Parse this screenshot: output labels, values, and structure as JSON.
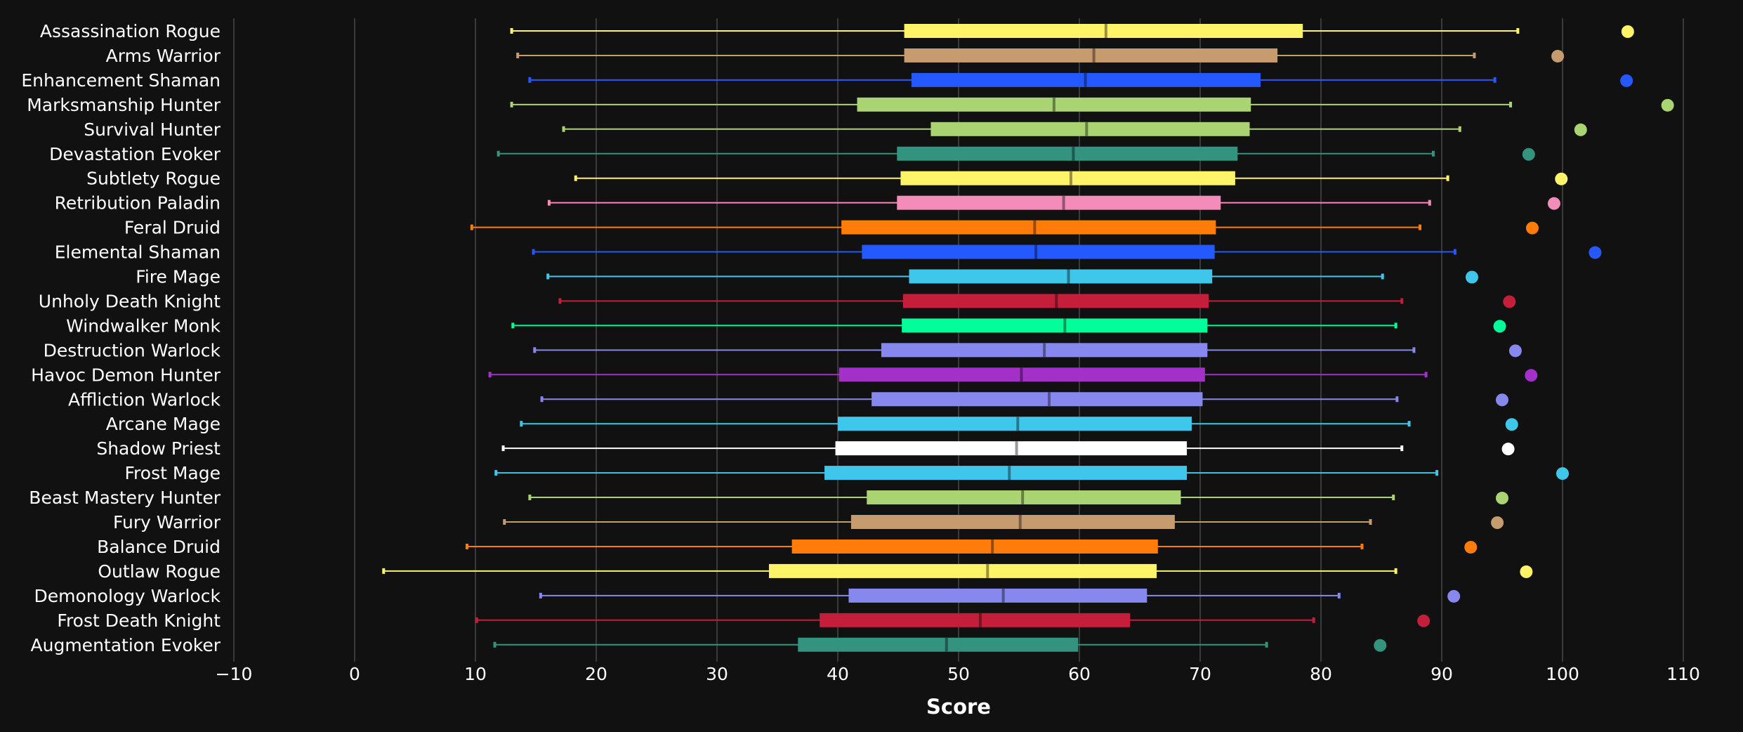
{
  "chart_data": {
    "type": "boxplot",
    "title": "",
    "xlabel": "Score",
    "ylabel": "",
    "xlim": [
      -10,
      110
    ],
    "xticks": [
      -10,
      0,
      10,
      20,
      30,
      40,
      50,
      60,
      70,
      80,
      90,
      100,
      110
    ],
    "grid": true,
    "series": [
      {
        "name": "Assassination Rogue",
        "color": "#FFF468",
        "min": 13.0,
        "q1": 45.5,
        "median": 62.2,
        "q3": 78.5,
        "max": 96.3,
        "outlier": 105.4
      },
      {
        "name": "Arms Warrior",
        "color": "#C69B6D",
        "min": 13.5,
        "q1": 45.5,
        "median": 61.2,
        "q3": 76.4,
        "max": 92.7,
        "outlier": 99.6
      },
      {
        "name": "Enhancement Shaman",
        "color": "#2459FF",
        "min": 14.5,
        "q1": 46.1,
        "median": 60.5,
        "q3": 75.0,
        "max": 94.4,
        "outlier": 105.3
      },
      {
        "name": "Marksmanship Hunter",
        "color": "#AAD372",
        "min": 13.0,
        "q1": 41.6,
        "median": 57.9,
        "q3": 74.2,
        "max": 95.7,
        "outlier": 108.7
      },
      {
        "name": "Survival Hunter",
        "color": "#AAD372",
        "min": 17.3,
        "q1": 47.7,
        "median": 60.6,
        "q3": 74.1,
        "max": 91.5,
        "outlier": 101.5
      },
      {
        "name": "Devastation Evoker",
        "color": "#33937F",
        "min": 11.9,
        "q1": 44.9,
        "median": 59.5,
        "q3": 73.1,
        "max": 89.3,
        "outlier": 97.2
      },
      {
        "name": "Subtlety Rogue",
        "color": "#FFF468",
        "min": 18.3,
        "q1": 45.2,
        "median": 59.3,
        "q3": 72.9,
        "max": 90.5,
        "outlier": 99.9
      },
      {
        "name": "Retribution Paladin",
        "color": "#F48CBA",
        "min": 16.1,
        "q1": 44.9,
        "median": 58.7,
        "q3": 71.7,
        "max": 89.0,
        "outlier": 99.3
      },
      {
        "name": "Feral Druid",
        "color": "#FF7C0A",
        "min": 9.7,
        "q1": 40.3,
        "median": 56.3,
        "q3": 71.3,
        "max": 88.2,
        "outlier": 97.5
      },
      {
        "name": "Elemental Shaman",
        "color": "#2459FF",
        "min": 14.8,
        "q1": 42.0,
        "median": 56.4,
        "q3": 71.2,
        "max": 91.1,
        "outlier": 102.7
      },
      {
        "name": "Fire Mage",
        "color": "#3FC7EB",
        "min": 16.0,
        "q1": 45.9,
        "median": 59.1,
        "q3": 71.0,
        "max": 85.1,
        "outlier": 92.5
      },
      {
        "name": "Unholy Death Knight",
        "color": "#C41E3A",
        "min": 17.0,
        "q1": 45.4,
        "median": 58.1,
        "q3": 70.7,
        "max": 86.7,
        "outlier": 95.6
      },
      {
        "name": "Windwalker Monk",
        "color": "#00FF98",
        "min": 13.1,
        "q1": 45.3,
        "median": 58.8,
        "q3": 70.6,
        "max": 86.2,
        "outlier": 94.8
      },
      {
        "name": "Destruction Warlock",
        "color": "#8788EE",
        "min": 14.9,
        "q1": 43.6,
        "median": 57.1,
        "q3": 70.6,
        "max": 87.7,
        "outlier": 96.1
      },
      {
        "name": "Havoc Demon Hunter",
        "color": "#A330C9",
        "min": 11.2,
        "q1": 40.1,
        "median": 55.2,
        "q3": 70.4,
        "max": 88.7,
        "outlier": 97.4
      },
      {
        "name": "Affliction Warlock",
        "color": "#8788EE",
        "min": 15.5,
        "q1": 42.8,
        "median": 57.5,
        "q3": 70.2,
        "max": 86.3,
        "outlier": 95.0
      },
      {
        "name": "Arcane Mage",
        "color": "#3FC7EB",
        "min": 13.8,
        "q1": 40.0,
        "median": 54.9,
        "q3": 69.3,
        "max": 87.3,
        "outlier": 95.8
      },
      {
        "name": "Shadow Priest",
        "color": "#FFFFFF",
        "min": 12.3,
        "q1": 39.8,
        "median": 54.8,
        "q3": 68.9,
        "max": 86.7,
        "outlier": 95.5
      },
      {
        "name": "Frost Mage",
        "color": "#3FC7EB",
        "min": 11.7,
        "q1": 38.9,
        "median": 54.2,
        "q3": 68.9,
        "max": 89.6,
        "outlier": 100.0
      },
      {
        "name": "Beast Mastery Hunter",
        "color": "#AAD372",
        "min": 14.5,
        "q1": 42.4,
        "median": 55.3,
        "q3": 68.4,
        "max": 86.0,
        "outlier": 95.0
      },
      {
        "name": "Fury Warrior",
        "color": "#C69B6D",
        "min": 12.4,
        "q1": 41.1,
        "median": 55.1,
        "q3": 67.9,
        "max": 84.1,
        "outlier": 94.6
      },
      {
        "name": "Balance Druid",
        "color": "#FF7C0A",
        "min": 9.3,
        "q1": 36.2,
        "median": 52.8,
        "q3": 66.5,
        "max": 83.4,
        "outlier": 92.4
      },
      {
        "name": "Outlaw Rogue",
        "color": "#FFF468",
        "min": 2.4,
        "q1": 34.3,
        "median": 52.4,
        "q3": 66.4,
        "max": 86.2,
        "outlier": 97.0
      },
      {
        "name": "Demonology Warlock",
        "color": "#8788EE",
        "min": 15.4,
        "q1": 40.9,
        "median": 53.7,
        "q3": 65.6,
        "max": 81.5,
        "outlier": 91.0
      },
      {
        "name": "Frost Death Knight",
        "color": "#C41E3A",
        "min": 10.1,
        "q1": 38.5,
        "median": 51.8,
        "q3": 64.2,
        "max": 79.4,
        "outlier": 88.5
      },
      {
        "name": "Augmentation Evoker",
        "color": "#33937F",
        "min": 11.6,
        "q1": 36.7,
        "median": 49.0,
        "q3": 59.9,
        "max": 75.5,
        "outlier": 84.9
      }
    ]
  }
}
